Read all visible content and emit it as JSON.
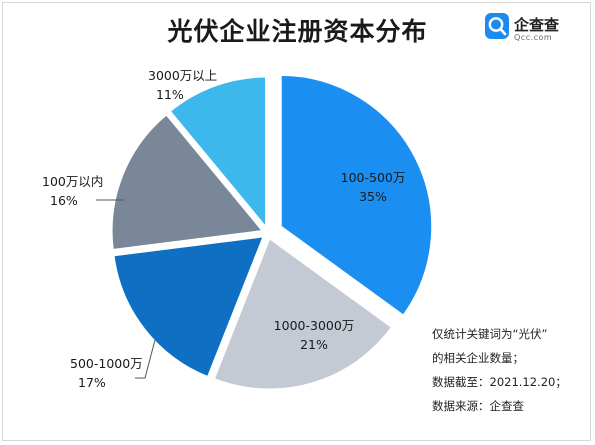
{
  "title": "光伏企业注册资本分布",
  "logo": {
    "name": "企查查",
    "sub": "Qcc.com",
    "icon": "qcc-search-logo-icon",
    "color": "#1b8bf0"
  },
  "note_lines": [
    "仅统计关键词为“光伏”",
    "的相关企业数量；",
    "数据截至：2021.12.20；",
    "数据来源：企查查"
  ],
  "chart_data": {
    "type": "pie",
    "title": "光伏企业注册资本分布",
    "slices": [
      {
        "label": "100-500万",
        "value": 35,
        "pct_text": "35%",
        "color": "#1b8ef2"
      },
      {
        "label": "1000-3000万",
        "value": 21,
        "pct_text": "21%",
        "color": "#c3cad3"
      },
      {
        "label": "500-1000万",
        "value": 17,
        "pct_text": "17%",
        "color": "#0f6fc2"
      },
      {
        "label": "100万以内",
        "value": 16,
        "pct_text": "16%",
        "color": "#7a8799"
      },
      {
        "label": "3000万以上",
        "value": 11,
        "pct_text": "11%",
        "color": "#3db8ec"
      }
    ]
  }
}
